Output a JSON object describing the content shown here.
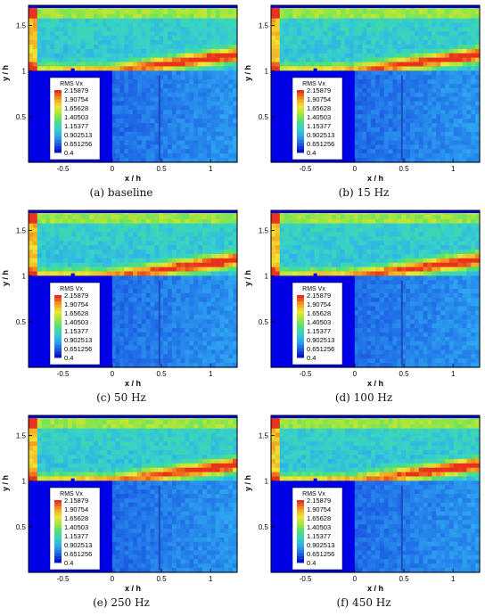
{
  "chart_data": [
    {
      "type": "heatmap",
      "caption": "(a) baseline",
      "colorbar_title": "RMS Vx",
      "colorbar_levels": [
        "2.15879",
        "1.90754",
        "1.65628",
        "1.40503",
        "1.15377",
        "0.902513",
        "0.651256",
        "0.4"
      ],
      "xlabel": "x / h",
      "ylabel": "y / h",
      "xticks": [
        "-0.5",
        "0",
        "0.5",
        "1"
      ],
      "yticks": [
        "0.5",
        "1",
        "1.5"
      ],
      "xlim": [
        -0.85,
        1.27
      ],
      "ylim": [
        0,
        1.72
      ]
    },
    {
      "type": "heatmap",
      "caption": "(b) 15 Hz",
      "colorbar_title": "RMS Vx",
      "colorbar_levels": [
        "2.15879",
        "1.90754",
        "1.65628",
        "1.40503",
        "1.15377",
        "0.902513",
        "0.651256",
        "0.4"
      ],
      "xlabel": "x / h",
      "ylabel": "y / h",
      "xticks": [
        "-0.5",
        "0",
        "0.5",
        "1"
      ],
      "yticks": [
        "0.5",
        "1",
        "1.5"
      ],
      "xlim": [
        -0.85,
        1.27
      ],
      "ylim": [
        0,
        1.72
      ]
    },
    {
      "type": "heatmap",
      "caption": "(c) 50 Hz",
      "colorbar_title": "RMS Vx",
      "colorbar_levels": [
        "2.15879",
        "1.90754",
        "1.65628",
        "1.40503",
        "1.15377",
        "0.902513",
        "0.651256",
        "0.4"
      ],
      "xlabel": "x / h",
      "ylabel": "y / h",
      "xticks": [
        "-0.5",
        "0",
        "0.5",
        "1"
      ],
      "yticks": [
        "0.5",
        "1",
        "1.5"
      ],
      "xlim": [
        -0.85,
        1.27
      ],
      "ylim": [
        0,
        1.72
      ]
    },
    {
      "type": "heatmap",
      "caption": "(d) 100 Hz",
      "colorbar_title": "RMS Vx",
      "colorbar_levels": [
        "2.15879",
        "1.90754",
        "1.65628",
        "1.40503",
        "1.15377",
        "0.902513",
        "0.651256",
        "0.4"
      ],
      "xlabel": "x / h",
      "ylabel": "y / h",
      "xticks": [
        "-0.5",
        "0",
        "0.5",
        "1"
      ],
      "yticks": [
        "0.5",
        "1",
        "1.5"
      ],
      "xlim": [
        -0.85,
        1.27
      ],
      "ylim": [
        0,
        1.72
      ]
    },
    {
      "type": "heatmap",
      "caption": "(e) 250 Hz",
      "colorbar_title": "RMS Vx",
      "colorbar_levels": [
        "2.15879",
        "1.90754",
        "1.65628",
        "1.40503",
        "1.15377",
        "0.902513",
        "0.651256",
        "0.4"
      ],
      "xlabel": "x / h",
      "ylabel": "y / h",
      "xticks": [
        "-0.5",
        "0",
        "0.5",
        "1"
      ],
      "yticks": [
        "0.5",
        "1",
        "1.5"
      ],
      "xlim": [
        -0.85,
        1.27
      ],
      "ylim": [
        0,
        1.72
      ]
    },
    {
      "type": "heatmap",
      "caption": "(f) 450 Hz",
      "colorbar_title": "RMS Vx",
      "colorbar_levels": [
        "2.15879",
        "1.90754",
        "1.65628",
        "1.40503",
        "1.15377",
        "0.902513",
        "0.651256",
        "0.4"
      ],
      "xlabel": "x / h",
      "ylabel": "y / h",
      "xticks": [
        "-0.5",
        "0",
        "0.5",
        "1"
      ],
      "yticks": [
        "0.5",
        "1",
        "1.5"
      ],
      "xlim": [
        -0.85,
        1.27
      ],
      "ylim": [
        0,
        1.72
      ]
    }
  ],
  "colors": {
    "colormap": [
      "#0a14c8",
      "#1e64e6",
      "#2ea8f0",
      "#36d2c8",
      "#4be07a",
      "#a6e63a",
      "#f0e632",
      "#f59a1e",
      "#e8321e"
    ],
    "wall": "#0000e6"
  }
}
